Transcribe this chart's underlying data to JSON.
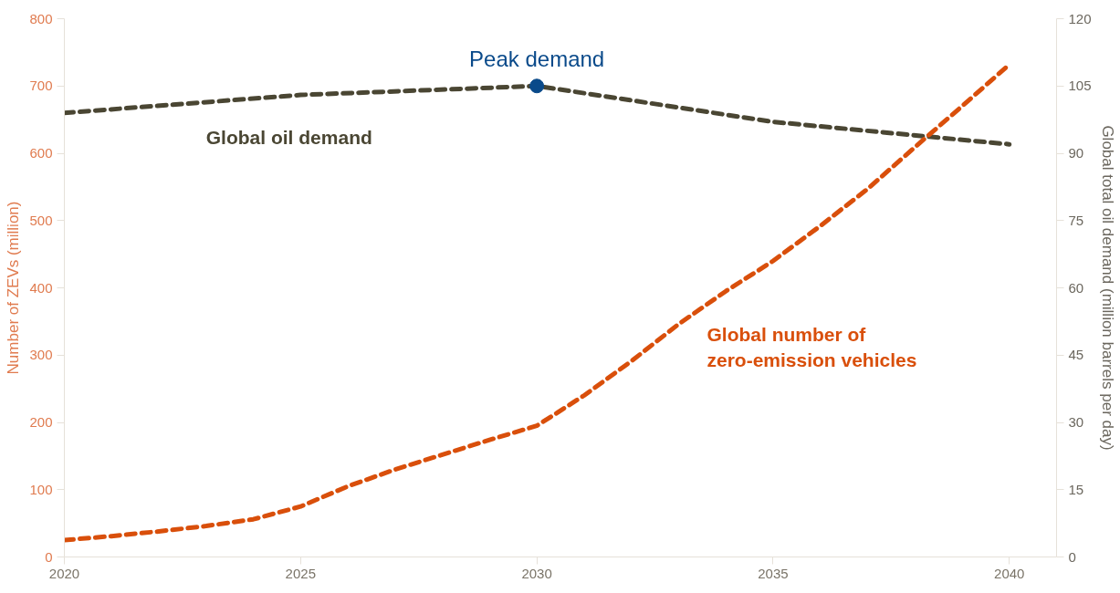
{
  "chart_data": {
    "type": "line",
    "ylabel": "Number of ZEVs (million)",
    "y2label": "Global total oil demand (million barrels per day)",
    "xlim": [
      2020,
      2041
    ],
    "xticks": [
      2020,
      2025,
      2030,
      2035,
      2040
    ],
    "ylim": [
      0,
      800
    ],
    "yticks": [
      0,
      100,
      200,
      300,
      400,
      500,
      600,
      700,
      800
    ],
    "y2lim": [
      0,
      120
    ],
    "y2ticks": [
      0,
      15,
      30,
      45,
      60,
      75,
      90,
      105,
      120
    ],
    "grid": false,
    "line_style": "dashed",
    "marker": "none",
    "series": [
      {
        "name": "Global oil demand",
        "color": "#4a4633",
        "x": [
          2020,
          2025,
          2030,
          2035,
          2040
        ],
        "values": [
          99,
          103,
          105,
          97,
          92
        ],
        "axis": "y2"
      },
      {
        "name": "Global number of\nzero-emission vehicles",
        "color": "#d94f0b",
        "x": [
          2020,
          2021,
          2022,
          2023,
          2024,
          2025,
          2026,
          2027,
          2028,
          2029,
          2030,
          2031,
          2032,
          2033,
          2034,
          2035,
          2036,
          2037,
          2038,
          2039,
          2040
        ],
        "values": [
          25,
          31,
          38,
          46,
          56,
          75,
          105,
          130,
          152,
          174,
          195,
          240,
          291,
          346,
          395,
          440,
          492,
          547,
          609,
          670,
          732
        ]
      },
      {
        "type": "scatter",
        "marker": "circle",
        "color": "#0a4a8a",
        "x": [
          2030
        ],
        "values": [
          105
        ],
        "axis": "y2"
      }
    ],
    "annotations": [
      "Peak demand"
    ]
  }
}
